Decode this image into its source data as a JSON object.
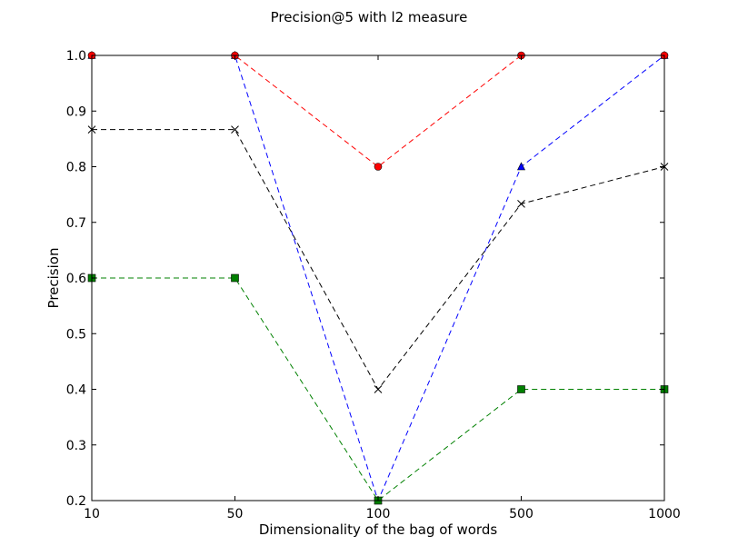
{
  "chart_data": {
    "type": "line",
    "title": "Precision@5 with l2 measure",
    "xlabel": "Dimensionality of the bag of words",
    "ylabel": "Precision",
    "categories": [
      "10",
      "50",
      "100",
      "500",
      "1000"
    ],
    "ylim": [
      0.2,
      1.0
    ],
    "yticks": [
      "0.2",
      "0.3",
      "0.4",
      "0.5",
      "0.6",
      "0.7",
      "0.8",
      "0.9",
      "1.0"
    ],
    "grid": false,
    "series": [
      {
        "color": "#0000ff",
        "marker": "triangle",
        "values": [
          1.0,
          1.0,
          0.2,
          0.8,
          1.0
        ]
      },
      {
        "color": "#ff0000",
        "marker": "circle",
        "values": [
          1.0,
          1.0,
          0.8,
          1.0,
          1.0
        ]
      },
      {
        "color": "#000000",
        "marker": "x",
        "values": [
          0.8667,
          0.8667,
          0.4,
          0.7333,
          0.8
        ]
      },
      {
        "color": "#008000",
        "marker": "square",
        "values": [
          0.6,
          0.6,
          0.2,
          0.4,
          0.4
        ]
      }
    ]
  }
}
